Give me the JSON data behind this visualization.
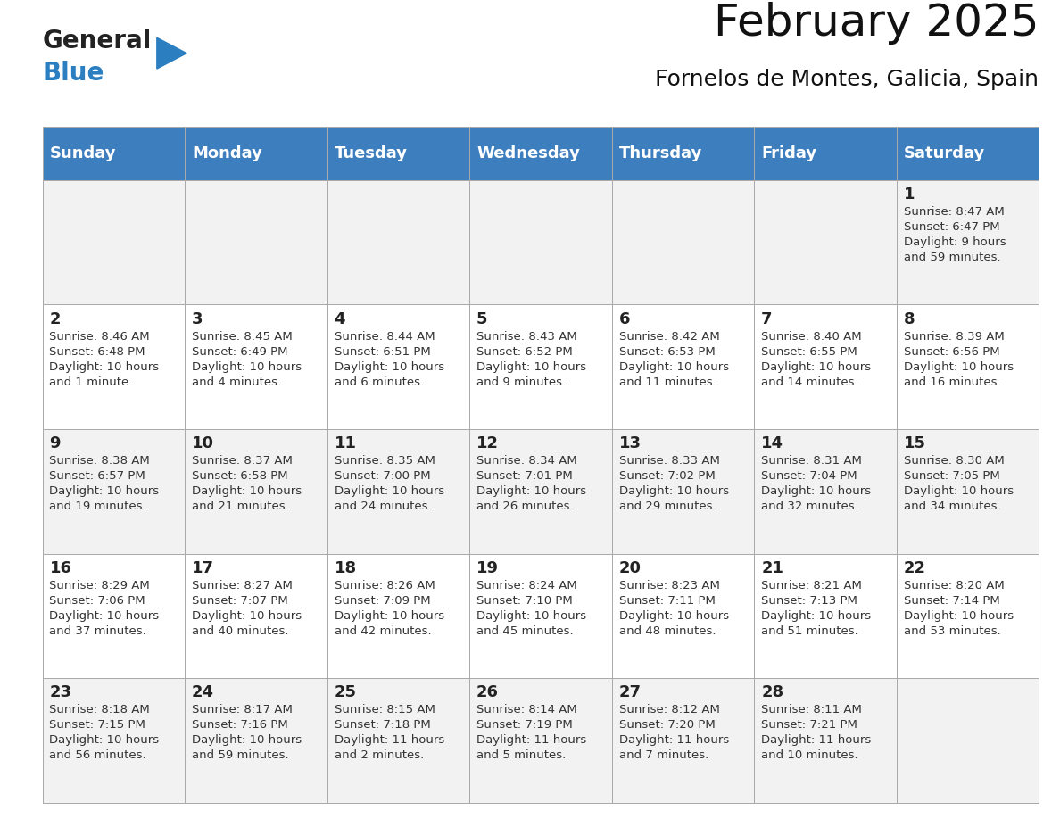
{
  "title": "February 2025",
  "subtitle": "Fornelos de Montes, Galicia, Spain",
  "header_bg": "#3d7ebf",
  "header_text": "#ffffff",
  "cell_bg_light": "#f2f2f2",
  "cell_bg_white": "#ffffff",
  "day_headers": [
    "Sunday",
    "Monday",
    "Tuesday",
    "Wednesday",
    "Thursday",
    "Friday",
    "Saturday"
  ],
  "header_fontsize": 13,
  "title_fontsize": 36,
  "subtitle_fontsize": 18,
  "day_num_fontsize": 13,
  "cell_fontsize": 9.5,
  "logo_text1": "General",
  "logo_text2": "Blue",
  "logo_color1": "#222222",
  "logo_color2": "#2b7fc1",
  "triangle_color": "#2b7fc1",
  "grid_color": "#aaaaaa",
  "weeks": [
    [
      {
        "day": "",
        "info": ""
      },
      {
        "day": "",
        "info": ""
      },
      {
        "day": "",
        "info": ""
      },
      {
        "day": "",
        "info": ""
      },
      {
        "day": "",
        "info": ""
      },
      {
        "day": "",
        "info": ""
      },
      {
        "day": "1",
        "info": "Sunrise: 8:47 AM\nSunset: 6:47 PM\nDaylight: 9 hours\nand 59 minutes."
      }
    ],
    [
      {
        "day": "2",
        "info": "Sunrise: 8:46 AM\nSunset: 6:48 PM\nDaylight: 10 hours\nand 1 minute."
      },
      {
        "day": "3",
        "info": "Sunrise: 8:45 AM\nSunset: 6:49 PM\nDaylight: 10 hours\nand 4 minutes."
      },
      {
        "day": "4",
        "info": "Sunrise: 8:44 AM\nSunset: 6:51 PM\nDaylight: 10 hours\nand 6 minutes."
      },
      {
        "day": "5",
        "info": "Sunrise: 8:43 AM\nSunset: 6:52 PM\nDaylight: 10 hours\nand 9 minutes."
      },
      {
        "day": "6",
        "info": "Sunrise: 8:42 AM\nSunset: 6:53 PM\nDaylight: 10 hours\nand 11 minutes."
      },
      {
        "day": "7",
        "info": "Sunrise: 8:40 AM\nSunset: 6:55 PM\nDaylight: 10 hours\nand 14 minutes."
      },
      {
        "day": "8",
        "info": "Sunrise: 8:39 AM\nSunset: 6:56 PM\nDaylight: 10 hours\nand 16 minutes."
      }
    ],
    [
      {
        "day": "9",
        "info": "Sunrise: 8:38 AM\nSunset: 6:57 PM\nDaylight: 10 hours\nand 19 minutes."
      },
      {
        "day": "10",
        "info": "Sunrise: 8:37 AM\nSunset: 6:58 PM\nDaylight: 10 hours\nand 21 minutes."
      },
      {
        "day": "11",
        "info": "Sunrise: 8:35 AM\nSunset: 7:00 PM\nDaylight: 10 hours\nand 24 minutes."
      },
      {
        "day": "12",
        "info": "Sunrise: 8:34 AM\nSunset: 7:01 PM\nDaylight: 10 hours\nand 26 minutes."
      },
      {
        "day": "13",
        "info": "Sunrise: 8:33 AM\nSunset: 7:02 PM\nDaylight: 10 hours\nand 29 minutes."
      },
      {
        "day": "14",
        "info": "Sunrise: 8:31 AM\nSunset: 7:04 PM\nDaylight: 10 hours\nand 32 minutes."
      },
      {
        "day": "15",
        "info": "Sunrise: 8:30 AM\nSunset: 7:05 PM\nDaylight: 10 hours\nand 34 minutes."
      }
    ],
    [
      {
        "day": "16",
        "info": "Sunrise: 8:29 AM\nSunset: 7:06 PM\nDaylight: 10 hours\nand 37 minutes."
      },
      {
        "day": "17",
        "info": "Sunrise: 8:27 AM\nSunset: 7:07 PM\nDaylight: 10 hours\nand 40 minutes."
      },
      {
        "day": "18",
        "info": "Sunrise: 8:26 AM\nSunset: 7:09 PM\nDaylight: 10 hours\nand 42 minutes."
      },
      {
        "day": "19",
        "info": "Sunrise: 8:24 AM\nSunset: 7:10 PM\nDaylight: 10 hours\nand 45 minutes."
      },
      {
        "day": "20",
        "info": "Sunrise: 8:23 AM\nSunset: 7:11 PM\nDaylight: 10 hours\nand 48 minutes."
      },
      {
        "day": "21",
        "info": "Sunrise: 8:21 AM\nSunset: 7:13 PM\nDaylight: 10 hours\nand 51 minutes."
      },
      {
        "day": "22",
        "info": "Sunrise: 8:20 AM\nSunset: 7:14 PM\nDaylight: 10 hours\nand 53 minutes."
      }
    ],
    [
      {
        "day": "23",
        "info": "Sunrise: 8:18 AM\nSunset: 7:15 PM\nDaylight: 10 hours\nand 56 minutes."
      },
      {
        "day": "24",
        "info": "Sunrise: 8:17 AM\nSunset: 7:16 PM\nDaylight: 10 hours\nand 59 minutes."
      },
      {
        "day": "25",
        "info": "Sunrise: 8:15 AM\nSunset: 7:18 PM\nDaylight: 11 hours\nand 2 minutes."
      },
      {
        "day": "26",
        "info": "Sunrise: 8:14 AM\nSunset: 7:19 PM\nDaylight: 11 hours\nand 5 minutes."
      },
      {
        "day": "27",
        "info": "Sunrise: 8:12 AM\nSunset: 7:20 PM\nDaylight: 11 hours\nand 7 minutes."
      },
      {
        "day": "28",
        "info": "Sunrise: 8:11 AM\nSunset: 7:21 PM\nDaylight: 11 hours\nand 10 minutes."
      },
      {
        "day": "",
        "info": ""
      }
    ]
  ]
}
